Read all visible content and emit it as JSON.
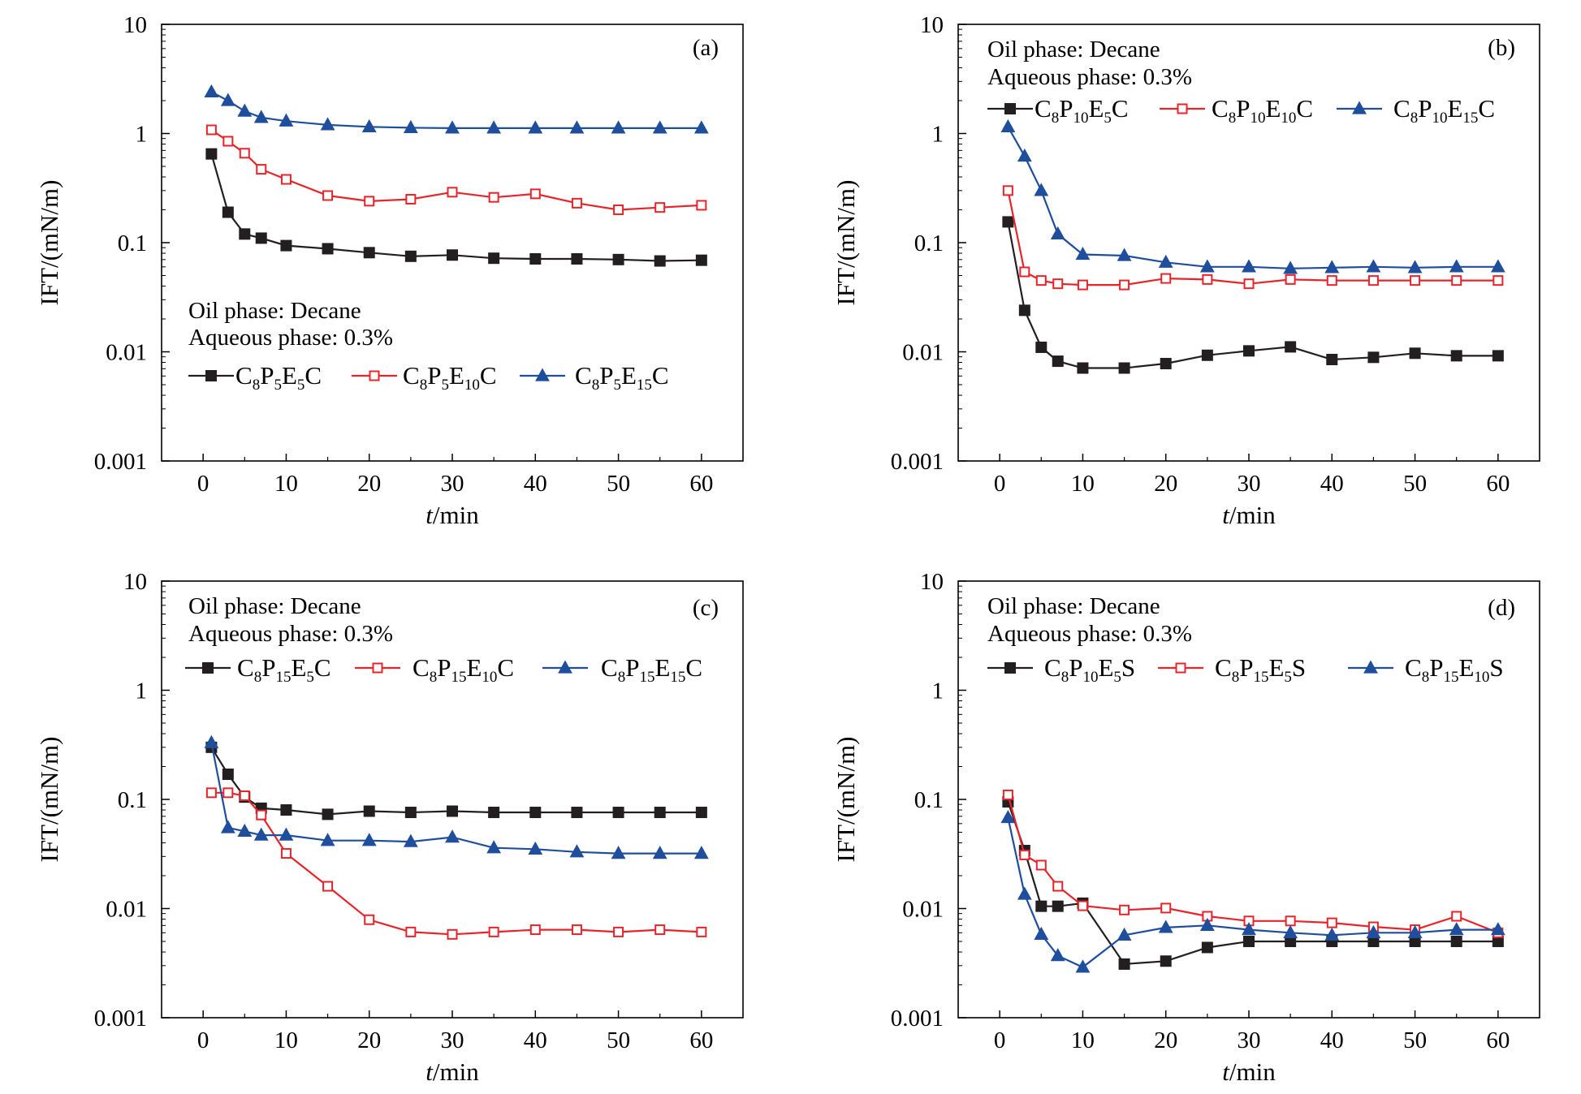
{
  "colors": {
    "black": "#231f20",
    "red": "#e8242b",
    "blue": "#1f4e9c"
  },
  "chart_data": [
    {
      "panel": "(a)",
      "type": "line",
      "xlabel": "t/min",
      "ylabel": "IFT/(mN/m)",
      "xlim": [
        -5,
        65
      ],
      "ylim": [
        0.001,
        10
      ],
      "yscale": "log",
      "xticks": [
        "0",
        "10",
        "20",
        "30",
        "40",
        "50",
        "60"
      ],
      "yticks": [
        "0.001",
        "0.01",
        "0.1",
        "1",
        "10"
      ],
      "annotation": [
        "Oil phase: Decane",
        "Aqueous phase: 0.3%"
      ],
      "legend_position": "middle-left",
      "series": [
        {
          "name": "C8P5E5C",
          "color": "black",
          "marker": "filled-square",
          "x": [
            1,
            3,
            5,
            7,
            10,
            15,
            20,
            25,
            30,
            35,
            40,
            45,
            50,
            55,
            60
          ],
          "y": [
            0.65,
            0.19,
            0.12,
            0.11,
            0.094,
            0.088,
            0.081,
            0.075,
            0.077,
            0.072,
            0.071,
            0.071,
            0.07,
            0.068,
            0.069
          ]
        },
        {
          "name": "C8P5E10C",
          "color": "red",
          "marker": "open-square",
          "x": [
            1,
            3,
            5,
            7,
            10,
            15,
            20,
            25,
            30,
            35,
            40,
            45,
            50,
            55,
            60
          ],
          "y": [
            1.08,
            0.85,
            0.66,
            0.47,
            0.38,
            0.27,
            0.24,
            0.25,
            0.29,
            0.26,
            0.28,
            0.23,
            0.2,
            0.21,
            0.22
          ]
        },
        {
          "name": "C8P5E15C",
          "color": "blue",
          "marker": "filled-triangle",
          "x": [
            1,
            3,
            5,
            7,
            10,
            15,
            20,
            25,
            30,
            35,
            40,
            45,
            50,
            55,
            60
          ],
          "y": [
            2.4,
            2.0,
            1.6,
            1.4,
            1.3,
            1.2,
            1.15,
            1.13,
            1.12,
            1.12,
            1.12,
            1.12,
            1.12,
            1.12,
            1.12
          ]
        }
      ]
    },
    {
      "panel": "(b)",
      "type": "line",
      "xlabel": "t/min",
      "ylabel": "IFT/(mN/m)",
      "xlim": [
        -5,
        65
      ],
      "ylim": [
        0.001,
        10
      ],
      "yscale": "log",
      "xticks": [
        "0",
        "10",
        "20",
        "30",
        "40",
        "50",
        "60"
      ],
      "yticks": [
        "0.001",
        "0.01",
        "0.1",
        "1",
        "10"
      ],
      "annotation": [
        "Oil phase: Decane",
        "Aqueous phase: 0.3%"
      ],
      "legend_position": "top",
      "series": [
        {
          "name": "C8P10E5C",
          "color": "black",
          "marker": "filled-square",
          "x": [
            1,
            3,
            5,
            7,
            10,
            15,
            20,
            25,
            30,
            35,
            40,
            45,
            50,
            55,
            60
          ],
          "y": [
            0.155,
            0.024,
            0.011,
            0.0082,
            0.0071,
            0.0071,
            0.0078,
            0.0093,
            0.0102,
            0.0111,
            0.0085,
            0.0089,
            0.0097,
            0.0092,
            0.0092
          ]
        },
        {
          "name": "C8P10E10C",
          "color": "red",
          "marker": "open-square",
          "x": [
            1,
            3,
            5,
            7,
            10,
            15,
            20,
            25,
            30,
            35,
            40,
            45,
            50,
            55,
            60
          ],
          "y": [
            0.3,
            0.054,
            0.045,
            0.042,
            0.041,
            0.041,
            0.047,
            0.046,
            0.042,
            0.046,
            0.045,
            0.045,
            0.045,
            0.045,
            0.045
          ]
        },
        {
          "name": "C8P10E15C",
          "color": "blue",
          "marker": "filled-triangle",
          "x": [
            1,
            3,
            5,
            7,
            10,
            15,
            20,
            25,
            30,
            35,
            40,
            45,
            50,
            55,
            60
          ],
          "y": [
            1.15,
            0.62,
            0.3,
            0.12,
            0.078,
            0.076,
            0.066,
            0.06,
            0.06,
            0.058,
            0.059,
            0.06,
            0.059,
            0.06,
            0.06
          ]
        }
      ]
    },
    {
      "panel": "(c)",
      "type": "line",
      "xlabel": "t/min",
      "ylabel": "IFT/(mN/m)",
      "xlim": [
        -5,
        65
      ],
      "ylim": [
        0.001,
        10
      ],
      "yscale": "log",
      "xticks": [
        "0",
        "10",
        "20",
        "30",
        "40",
        "50",
        "60"
      ],
      "yticks": [
        "0.001",
        "0.01",
        "0.1",
        "1",
        "10"
      ],
      "annotation": [
        "Oil phase: Decane",
        "Aqueous phase: 0.3%"
      ],
      "legend_position": "top",
      "series": [
        {
          "name": "C8P15E5C",
          "color": "black",
          "marker": "filled-square",
          "x": [
            1,
            3,
            5,
            7,
            10,
            15,
            20,
            25,
            30,
            35,
            40,
            45,
            50,
            55,
            60
          ],
          "y": [
            0.3,
            0.17,
            0.105,
            0.083,
            0.08,
            0.073,
            0.078,
            0.076,
            0.078,
            0.076,
            0.076,
            0.076,
            0.076,
            0.076,
            0.076
          ]
        },
        {
          "name": "C8P15E10C",
          "color": "red",
          "marker": "open-square",
          "x": [
            1,
            3,
            5,
            7,
            10,
            15,
            20,
            25,
            30,
            35,
            40,
            45,
            50,
            55,
            60
          ],
          "y": [
            0.115,
            0.115,
            0.108,
            0.072,
            0.032,
            0.016,
            0.0079,
            0.0061,
            0.0058,
            0.0061,
            0.0064,
            0.0064,
            0.0061,
            0.0064,
            0.0061
          ]
        },
        {
          "name": "C8P15E15C",
          "color": "blue",
          "marker": "filled-triangle",
          "x": [
            1,
            3,
            5,
            7,
            10,
            15,
            20,
            25,
            30,
            35,
            40,
            45,
            50,
            55,
            60
          ],
          "y": [
            0.33,
            0.055,
            0.051,
            0.047,
            0.047,
            0.042,
            0.042,
            0.041,
            0.045,
            0.036,
            0.035,
            0.033,
            0.032,
            0.032,
            0.032
          ]
        }
      ]
    },
    {
      "panel": "(d)",
      "type": "line",
      "xlabel": "t/min",
      "ylabel": "IFT/(mN/m)",
      "xlim": [
        -5,
        65
      ],
      "ylim": [
        0.001,
        10
      ],
      "yscale": "log",
      "xticks": [
        "0",
        "10",
        "20",
        "30",
        "40",
        "50",
        "60"
      ],
      "yticks": [
        "0.001",
        "0.01",
        "0.1",
        "1",
        "10"
      ],
      "annotation": [
        "Oil phase: Decane",
        "Aqueous phase: 0.3%"
      ],
      "legend_position": "top",
      "series": [
        {
          "name": "C8P10E5S",
          "color": "black",
          "marker": "filled-square",
          "x": [
            1,
            3,
            5,
            7,
            10,
            15,
            20,
            25,
            30,
            35,
            40,
            45,
            50,
            55,
            60
          ],
          "y": [
            0.095,
            0.034,
            0.0105,
            0.0105,
            0.0112,
            0.0031,
            0.0033,
            0.0044,
            0.005,
            0.005,
            0.005,
            0.005,
            0.005,
            0.005,
            0.005
          ]
        },
        {
          "name": "C8P15E5S",
          "color": "red",
          "marker": "open-square",
          "x": [
            1,
            3,
            5,
            7,
            10,
            15,
            20,
            25,
            30,
            35,
            40,
            45,
            50,
            55,
            60
          ],
          "y": [
            0.11,
            0.031,
            0.025,
            0.016,
            0.0106,
            0.0097,
            0.0101,
            0.0085,
            0.0077,
            0.0077,
            0.0074,
            0.0068,
            0.0064,
            0.0085,
            0.006
          ]
        },
        {
          "name": "C8P15E10S",
          "color": "blue",
          "marker": "filled-triangle",
          "x": [
            1,
            3,
            5,
            7,
            10,
            15,
            20,
            25,
            30,
            35,
            40,
            45,
            50,
            55,
            60
          ],
          "y": [
            0.068,
            0.0135,
            0.0058,
            0.0037,
            0.0029,
            0.0057,
            0.0067,
            0.007,
            0.0064,
            0.006,
            0.0057,
            0.006,
            0.006,
            0.0064,
            0.0064
          ]
        }
      ]
    }
  ]
}
